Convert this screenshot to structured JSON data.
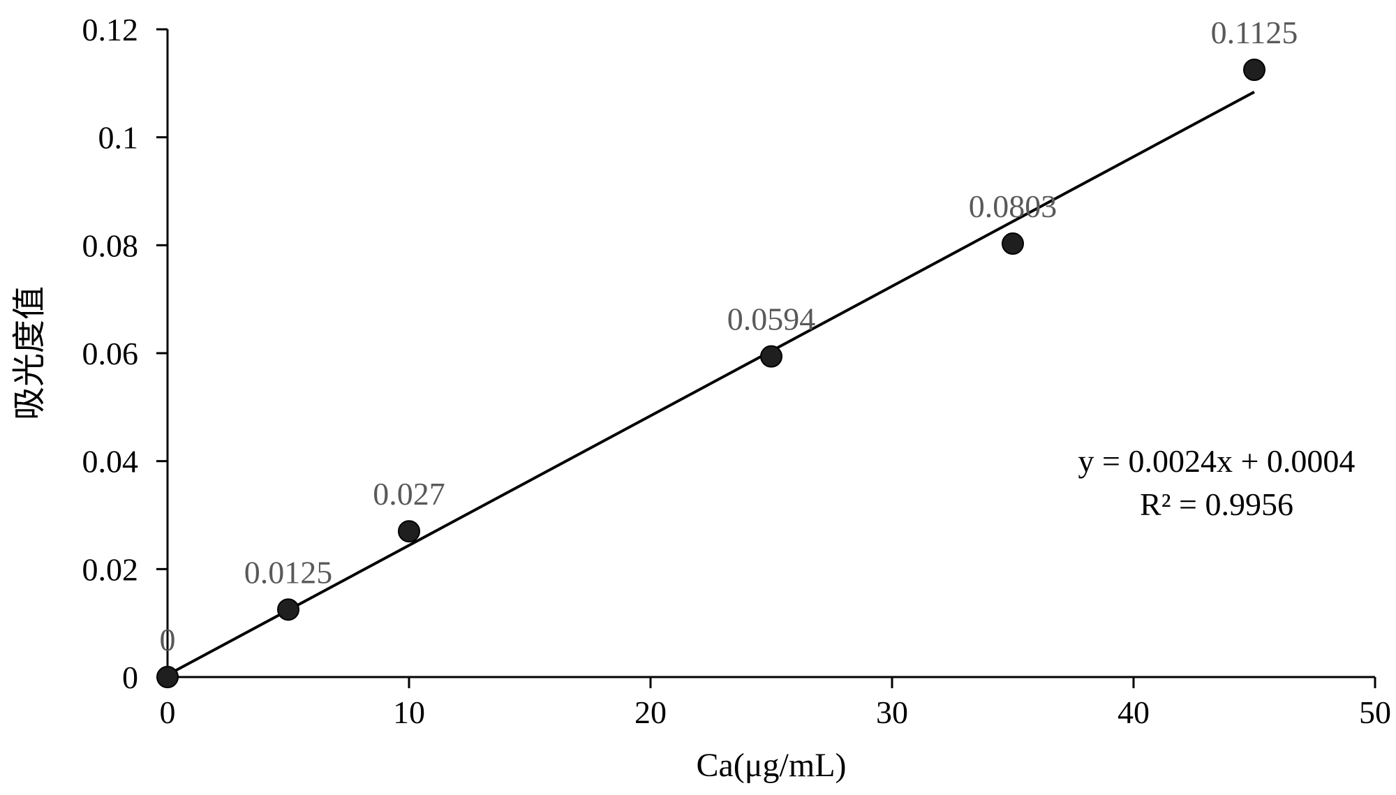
{
  "chart_data": {
    "type": "scatter",
    "title": "",
    "xlabel": "Ca(μg/mL)",
    "ylabel": "吸光度值",
    "xlim": [
      0,
      50
    ],
    "ylim": [
      0,
      0.12
    ],
    "x_ticks": [
      0,
      10,
      20,
      30,
      40,
      50
    ],
    "y_ticks": [
      0,
      0.02,
      0.04,
      0.06,
      0.08,
      0.1,
      0.12
    ],
    "x_tick_labels": [
      "0",
      "10",
      "20",
      "30",
      "40",
      "50"
    ],
    "y_tick_labels": [
      "0",
      "0.02",
      "0.04",
      "0.06",
      "0.08",
      "0.1",
      "0.12"
    ],
    "grid": false,
    "legend": "none",
    "series": [
      {
        "x": [
          0,
          5,
          10,
          25,
          35,
          45
        ],
        "y": [
          0,
          0.0125,
          0.027,
          0.0594,
          0.0803,
          0.1125
        ],
        "data_labels": [
          "0",
          "0.0125",
          "0.027",
          "0.0594",
          "0.0803",
          "0.1125"
        ],
        "marker_color": "#1f1f1f"
      }
    ],
    "trendline": {
      "type": "linear",
      "slope": 0.0024,
      "intercept": 0.0004,
      "x_range": [
        0,
        45
      ],
      "equation": "y = 0.0024x + 0.0004",
      "r_squared": "R² = 0.9956",
      "color": "#000000"
    },
    "colors": {
      "axis": "#000000",
      "data_label": "#595959",
      "marker": "#1f1f1f"
    }
  }
}
